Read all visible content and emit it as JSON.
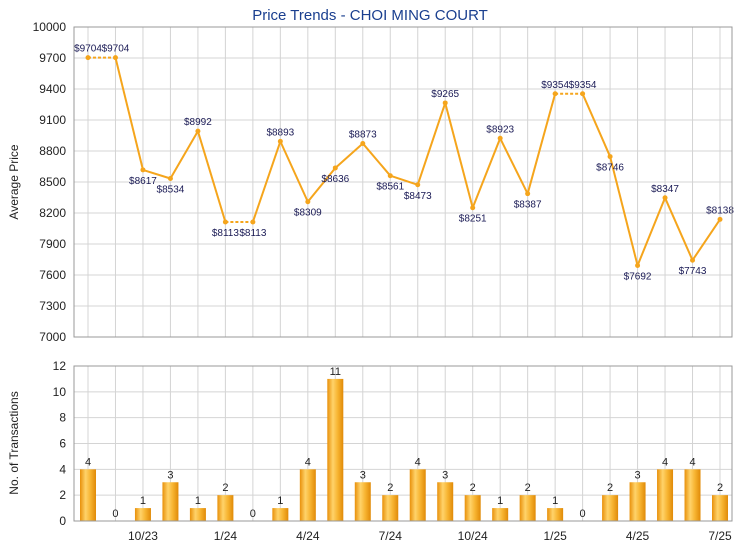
{
  "chart_data": [
    {
      "type": "line",
      "title": "Price Trends - CHOI MING COURT",
      "ylabel": "Average Price",
      "ylim": [
        7000,
        10000
      ],
      "yticks": [
        7000,
        7300,
        7600,
        7900,
        8200,
        8500,
        8800,
        9100,
        9400,
        9700,
        10000
      ],
      "grid": true,
      "points": [
        {
          "x": 0,
          "y": 9704,
          "label": "$9704"
        },
        {
          "x": 1,
          "y": 9704,
          "label": "$9704"
        },
        {
          "x": 2,
          "y": 8617,
          "label": "$8617"
        },
        {
          "x": 3,
          "y": 8534,
          "label": "$8534"
        },
        {
          "x": 4,
          "y": 8992,
          "label": "$8992"
        },
        {
          "x": 5,
          "y": 8113,
          "label": "$8113"
        },
        {
          "x": 6,
          "y": 8113,
          "label": "$8113"
        },
        {
          "x": 7,
          "y": 8893,
          "label": "$8893"
        },
        {
          "x": 8,
          "y": 8309,
          "label": "$8309"
        },
        {
          "x": 9,
          "y": 8636,
          "label": "$8636"
        },
        {
          "x": 10,
          "y": 8873,
          "label": "$8873"
        },
        {
          "x": 11,
          "y": 8561,
          "label": "$8561"
        },
        {
          "x": 12,
          "y": 8473,
          "label": "$8473"
        },
        {
          "x": 13,
          "y": 9265,
          "label": "$9265"
        },
        {
          "x": 14,
          "y": 8251,
          "label": "$8251"
        },
        {
          "x": 15,
          "y": 8923,
          "label": "$8923"
        },
        {
          "x": 16,
          "y": 8387,
          "label": "$8387"
        },
        {
          "x": 17,
          "y": 9354,
          "label": "$9354"
        },
        {
          "x": 18,
          "y": 9354,
          "label": "$9354"
        },
        {
          "x": 19,
          "y": 8746,
          "label": "$8746"
        },
        {
          "x": 20,
          "y": 7692,
          "label": "$7692"
        },
        {
          "x": 21,
          "y": 8347,
          "label": "$8347"
        },
        {
          "x": 22,
          "y": 7743,
          "label": "$7743"
        },
        {
          "x": 23,
          "y": 8138,
          "label": "$8138"
        }
      ],
      "dotted_segments": [
        [
          0,
          1
        ],
        [
          5,
          6
        ],
        [
          17,
          18
        ]
      ],
      "color": "#f5a51c"
    },
    {
      "type": "bar",
      "ylabel": "No. of Transactions",
      "ylim": [
        0,
        12
      ],
      "yticks": [
        0,
        2,
        4,
        6,
        8,
        10,
        12
      ],
      "grid": true,
      "values": [
        4,
        0,
        1,
        3,
        1,
        2,
        0,
        1,
        4,
        11,
        3,
        2,
        4,
        3,
        2,
        1,
        2,
        1,
        0,
        2,
        3,
        4,
        4,
        2
      ],
      "xtick_labels": [
        {
          "x": 2,
          "label": "10/23"
        },
        {
          "x": 5,
          "label": "1/24"
        },
        {
          "x": 8,
          "label": "4/24"
        },
        {
          "x": 11,
          "label": "7/24"
        },
        {
          "x": 14,
          "label": "10/24"
        },
        {
          "x": 17,
          "label": "1/25"
        },
        {
          "x": 20,
          "label": "4/25"
        },
        {
          "x": 23,
          "label": "7/25"
        }
      ],
      "color": "#f5a51c"
    }
  ]
}
